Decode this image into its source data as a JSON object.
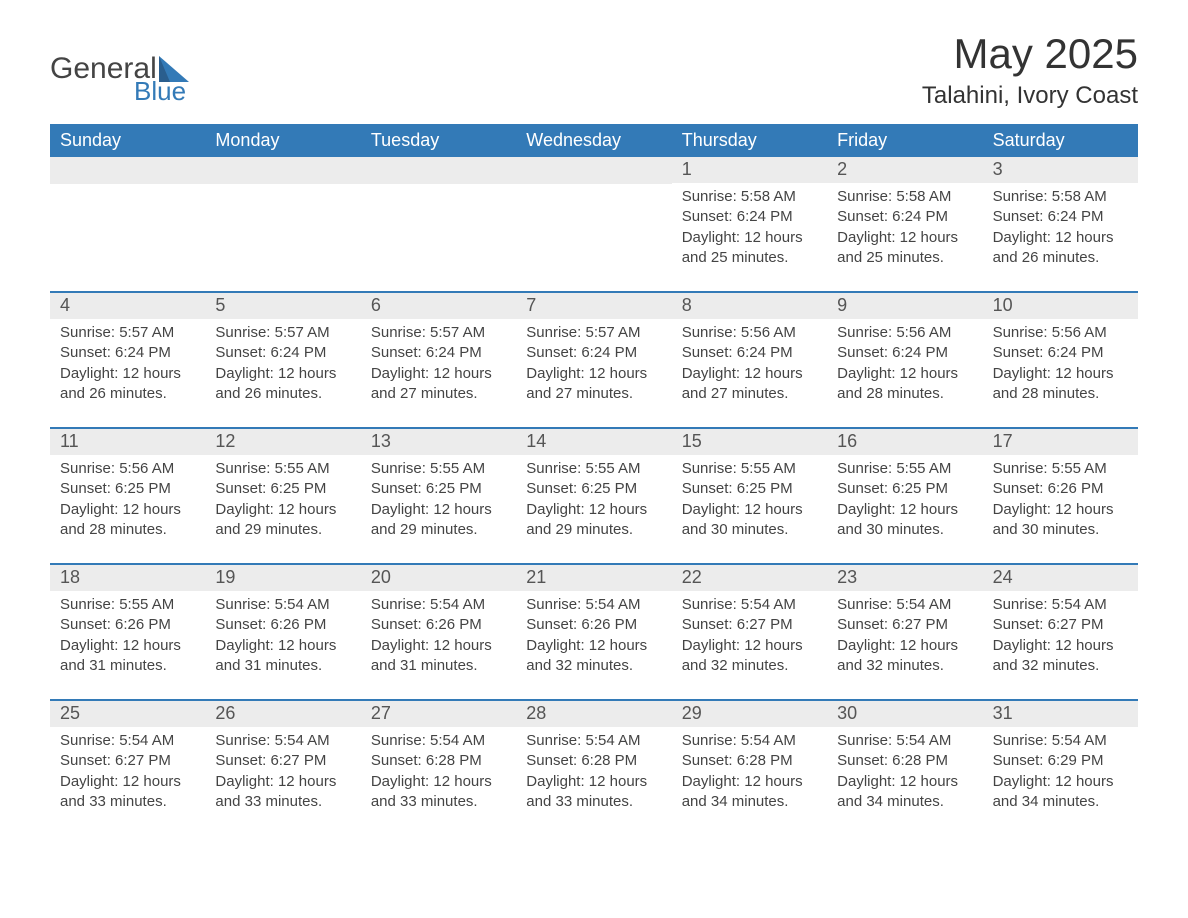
{
  "logo": {
    "word1": "General",
    "word2": "Blue"
  },
  "title": "May 2025",
  "subtitle": "Talahini, Ivory Coast",
  "colors": {
    "header_bg": "#337ab7",
    "header_text": "#ffffff",
    "daynum_bg": "#ececec",
    "divider": "#337ab7",
    "body_text": "#444444"
  },
  "weekdays": [
    "Sunday",
    "Monday",
    "Tuesday",
    "Wednesday",
    "Thursday",
    "Friday",
    "Saturday"
  ],
  "weeks": [
    [
      null,
      null,
      null,
      null,
      {
        "n": "1",
        "sr": "5:58 AM",
        "ss": "6:24 PM",
        "dl": "12 hours and 25 minutes."
      },
      {
        "n": "2",
        "sr": "5:58 AM",
        "ss": "6:24 PM",
        "dl": "12 hours and 25 minutes."
      },
      {
        "n": "3",
        "sr": "5:58 AM",
        "ss": "6:24 PM",
        "dl": "12 hours and 26 minutes."
      }
    ],
    [
      {
        "n": "4",
        "sr": "5:57 AM",
        "ss": "6:24 PM",
        "dl": "12 hours and 26 minutes."
      },
      {
        "n": "5",
        "sr": "5:57 AM",
        "ss": "6:24 PM",
        "dl": "12 hours and 26 minutes."
      },
      {
        "n": "6",
        "sr": "5:57 AM",
        "ss": "6:24 PM",
        "dl": "12 hours and 27 minutes."
      },
      {
        "n": "7",
        "sr": "5:57 AM",
        "ss": "6:24 PM",
        "dl": "12 hours and 27 minutes."
      },
      {
        "n": "8",
        "sr": "5:56 AM",
        "ss": "6:24 PM",
        "dl": "12 hours and 27 minutes."
      },
      {
        "n": "9",
        "sr": "5:56 AM",
        "ss": "6:24 PM",
        "dl": "12 hours and 28 minutes."
      },
      {
        "n": "10",
        "sr": "5:56 AM",
        "ss": "6:24 PM",
        "dl": "12 hours and 28 minutes."
      }
    ],
    [
      {
        "n": "11",
        "sr": "5:56 AM",
        "ss": "6:25 PM",
        "dl": "12 hours and 28 minutes."
      },
      {
        "n": "12",
        "sr": "5:55 AM",
        "ss": "6:25 PM",
        "dl": "12 hours and 29 minutes."
      },
      {
        "n": "13",
        "sr": "5:55 AM",
        "ss": "6:25 PM",
        "dl": "12 hours and 29 minutes."
      },
      {
        "n": "14",
        "sr": "5:55 AM",
        "ss": "6:25 PM",
        "dl": "12 hours and 29 minutes."
      },
      {
        "n": "15",
        "sr": "5:55 AM",
        "ss": "6:25 PM",
        "dl": "12 hours and 30 minutes."
      },
      {
        "n": "16",
        "sr": "5:55 AM",
        "ss": "6:25 PM",
        "dl": "12 hours and 30 minutes."
      },
      {
        "n": "17",
        "sr": "5:55 AM",
        "ss": "6:26 PM",
        "dl": "12 hours and 30 minutes."
      }
    ],
    [
      {
        "n": "18",
        "sr": "5:55 AM",
        "ss": "6:26 PM",
        "dl": "12 hours and 31 minutes."
      },
      {
        "n": "19",
        "sr": "5:54 AM",
        "ss": "6:26 PM",
        "dl": "12 hours and 31 minutes."
      },
      {
        "n": "20",
        "sr": "5:54 AM",
        "ss": "6:26 PM",
        "dl": "12 hours and 31 minutes."
      },
      {
        "n": "21",
        "sr": "5:54 AM",
        "ss": "6:26 PM",
        "dl": "12 hours and 32 minutes."
      },
      {
        "n": "22",
        "sr": "5:54 AM",
        "ss": "6:27 PM",
        "dl": "12 hours and 32 minutes."
      },
      {
        "n": "23",
        "sr": "5:54 AM",
        "ss": "6:27 PM",
        "dl": "12 hours and 32 minutes."
      },
      {
        "n": "24",
        "sr": "5:54 AM",
        "ss": "6:27 PM",
        "dl": "12 hours and 32 minutes."
      }
    ],
    [
      {
        "n": "25",
        "sr": "5:54 AM",
        "ss": "6:27 PM",
        "dl": "12 hours and 33 minutes."
      },
      {
        "n": "26",
        "sr": "5:54 AM",
        "ss": "6:27 PM",
        "dl": "12 hours and 33 minutes."
      },
      {
        "n": "27",
        "sr": "5:54 AM",
        "ss": "6:28 PM",
        "dl": "12 hours and 33 minutes."
      },
      {
        "n": "28",
        "sr": "5:54 AM",
        "ss": "6:28 PM",
        "dl": "12 hours and 33 minutes."
      },
      {
        "n": "29",
        "sr": "5:54 AM",
        "ss": "6:28 PM",
        "dl": "12 hours and 34 minutes."
      },
      {
        "n": "30",
        "sr": "5:54 AM",
        "ss": "6:28 PM",
        "dl": "12 hours and 34 minutes."
      },
      {
        "n": "31",
        "sr": "5:54 AM",
        "ss": "6:29 PM",
        "dl": "12 hours and 34 minutes."
      }
    ]
  ],
  "labels": {
    "sunrise": "Sunrise:",
    "sunset": "Sunset:",
    "daylight": "Daylight:"
  }
}
